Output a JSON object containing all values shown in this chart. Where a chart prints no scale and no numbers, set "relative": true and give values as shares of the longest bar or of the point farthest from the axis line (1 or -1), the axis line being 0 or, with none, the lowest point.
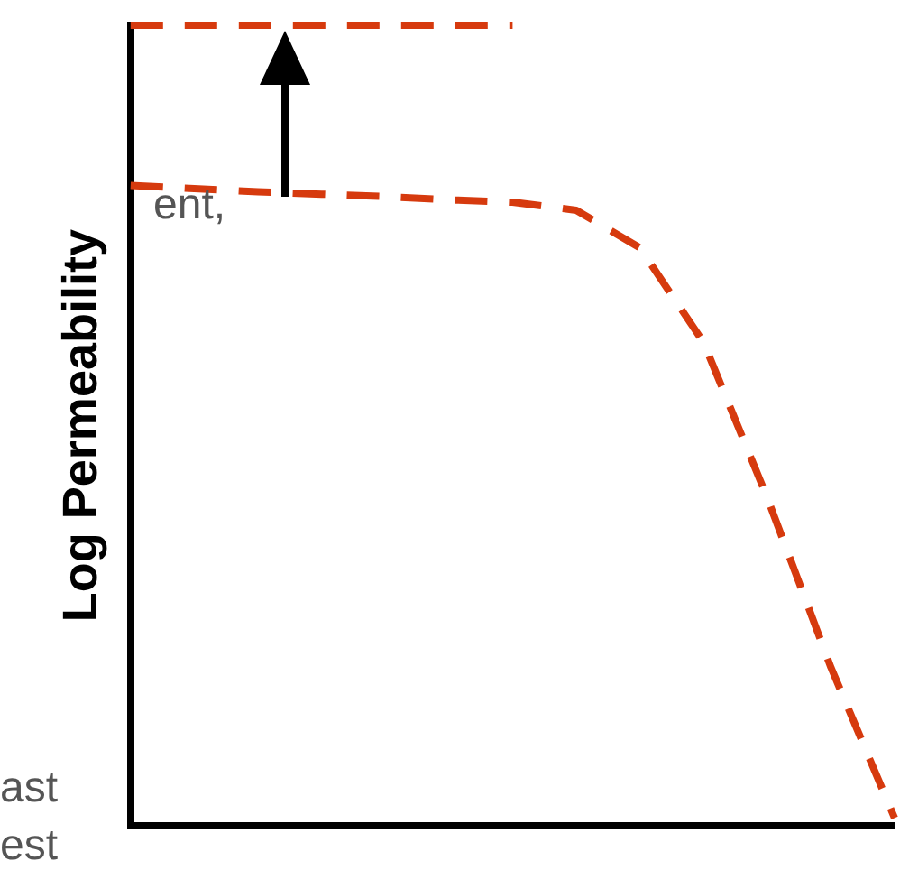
{
  "chart_data": {
    "type": "line",
    "relative": true,
    "ylabel": "Log Permeability",
    "categories": [
      null,
      null,
      null,
      null,
      null,
      null,
      null,
      null,
      null,
      null,
      null,
      null,
      null
    ],
    "series": [
      {
        "color": "#d63a0e",
        "values": [
          1,
          1,
          1,
          1,
          1,
          1,
          1,
          null,
          null,
          null,
          null,
          null,
          null
        ]
      },
      {
        "color": "#d63a0e",
        "values": [
          0.8,
          0.796,
          0.792,
          0.789,
          0.786,
          0.782,
          0.779,
          0.769,
          0.722,
          0.604,
          0.41,
          0.198,
          0.01
        ]
      }
    ],
    "annotations": [
      "ent,",
      "ast",
      "est"
    ],
    "legend": false,
    "grid": false,
    "marker": "none",
    "line_style": "dashed"
  }
}
